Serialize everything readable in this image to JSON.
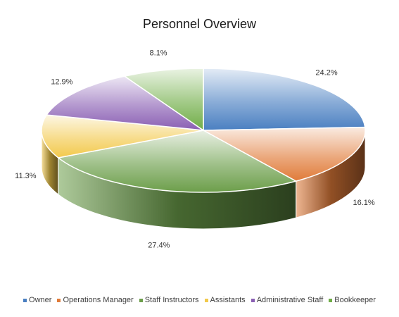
{
  "chart_data": {
    "type": "pie",
    "title": "Personnel Overview",
    "categories": [
      "Owner",
      "Operations Manager",
      "Staff Instructors",
      "Assistants",
      "Administrative Staff",
      "Bookkeeper"
    ],
    "values": [
      24.2,
      16.1,
      27.4,
      11.3,
      12.9,
      8.1
    ],
    "value_labels": [
      "24.2%",
      "16.1%",
      "27.4%",
      "11.3%",
      "12.9%",
      "8.1%"
    ],
    "colors": [
      "#4a7fc1",
      "#e07b39",
      "#6c9e4a",
      "#f2c94c",
      "#8a5fb3",
      "#70ad47"
    ],
    "legend_position": "bottom",
    "style": "3d-gradient"
  }
}
